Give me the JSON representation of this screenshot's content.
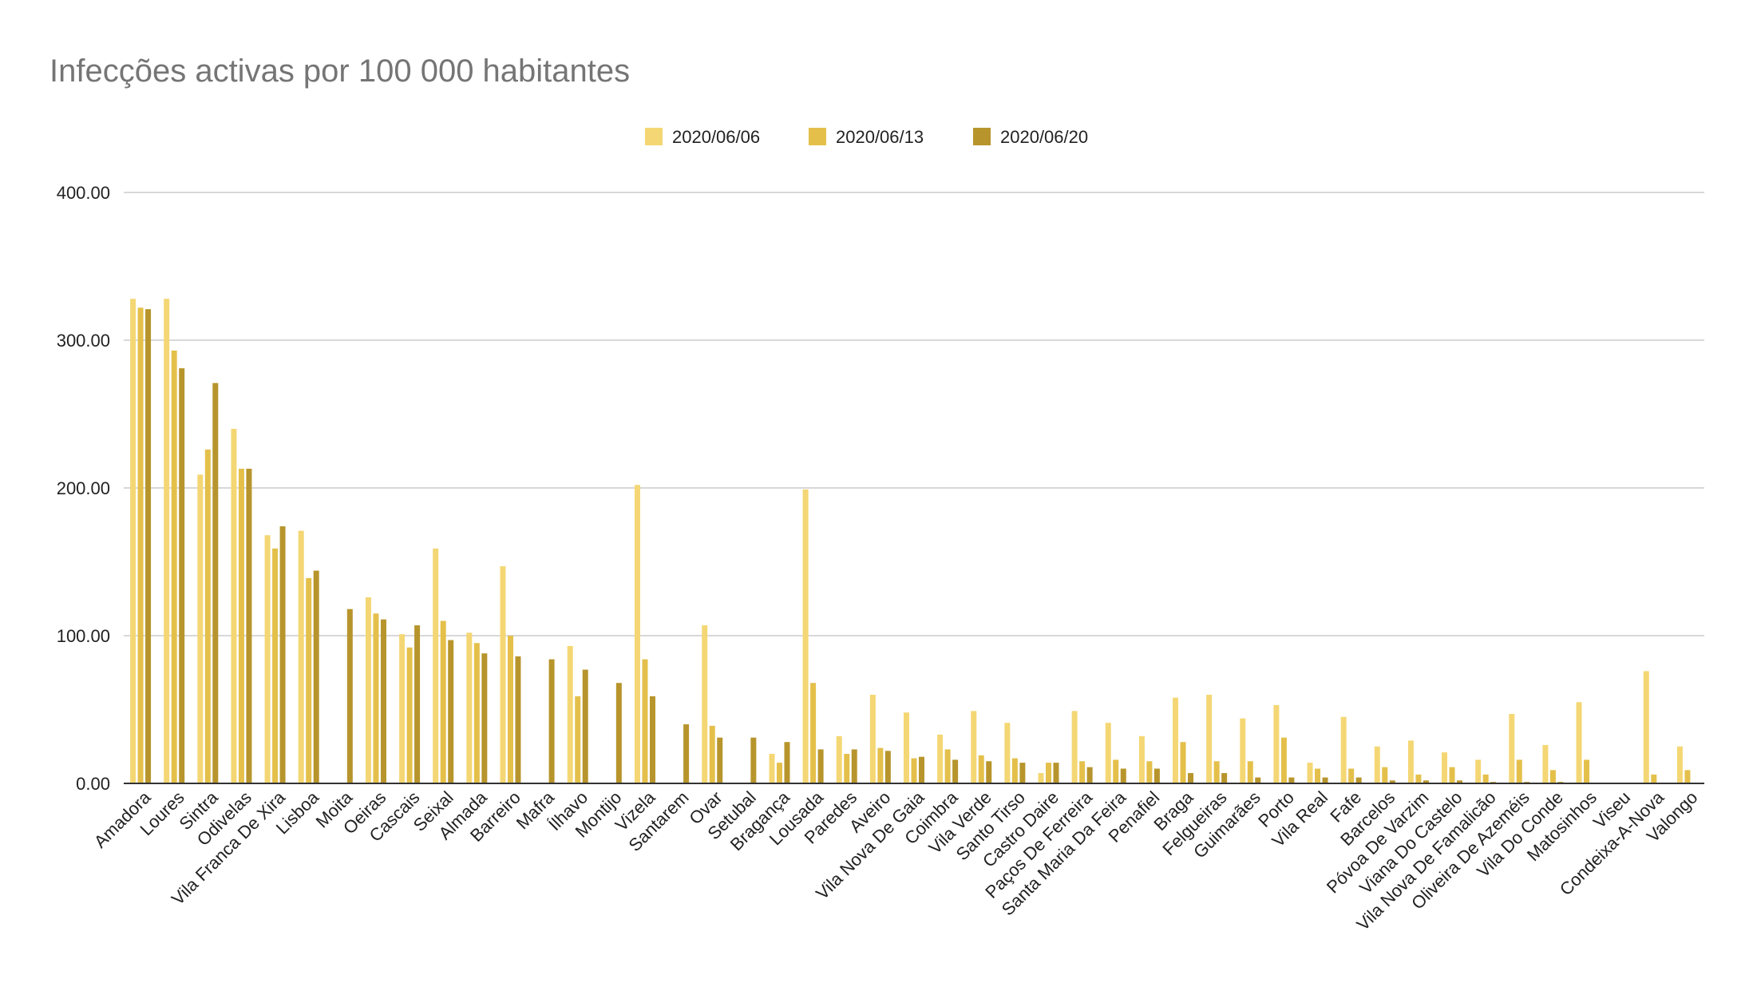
{
  "chart_data": {
    "type": "bar",
    "title": "Infecções activas por 100 000 habitantes",
    "xlabel": "",
    "ylabel": "",
    "ylim": [
      0,
      400
    ],
    "yticks": [
      0,
      100,
      200,
      300,
      400
    ],
    "ytick_labels": [
      "0.00",
      "100.00",
      "200.00",
      "300.00",
      "400.00"
    ],
    "grid": true,
    "legend_position": "top-center",
    "categories": [
      "Amadora",
      "Loures",
      "Sintra",
      "Odivelas",
      "Vila Franca De Xira",
      "Lisboa",
      "Moita",
      "Oeiras",
      "Cascais",
      "Seixal",
      "Almada",
      "Barreiro",
      "Mafra",
      "Ílhavo",
      "Montijo",
      "Vizela",
      "Santarem",
      "Ovar",
      "Setubal",
      "Bragança",
      "Lousada",
      "Paredes",
      "Aveiro",
      "Vila Nova De Gaia",
      "Coimbra",
      "Vila Verde",
      "Santo Tirso",
      "Castro Daire",
      "Paços De Ferreira",
      "Santa Maria Da Feira",
      "Penafiel",
      "Braga",
      "Felgueiras",
      "Guimarães",
      "Porto",
      "Vila Real",
      "Fafe",
      "Barcelos",
      "Póvoa De Varzim",
      "Viana Do Castelo",
      "Vila Nova De Famalicão",
      "Oliveira De Azeméis",
      "Vila Do Conde",
      "Matosinhos",
      "Viseu",
      "Condeixa-A-Nova",
      "Valongo"
    ],
    "series": [
      {
        "name": "2020/06/06",
        "color": "#f4d774",
        "values": [
          328,
          328,
          209,
          240,
          168,
          171,
          0,
          126,
          101,
          159,
          102,
          147,
          0,
          93,
          0,
          202,
          0,
          107,
          0,
          20,
          199,
          32,
          60,
          48,
          33,
          49,
          41,
          7,
          49,
          41,
          32,
          58,
          60,
          44,
          53,
          14,
          45,
          25,
          29,
          21,
          16,
          47,
          26,
          55,
          0,
          76,
          25
        ]
      },
      {
        "name": "2020/06/13",
        "color": "#e4c04b",
        "values": [
          322,
          293,
          226,
          213,
          159,
          139,
          0,
          115,
          92,
          110,
          95,
          100,
          0,
          59,
          0,
          84,
          0,
          39,
          0,
          14,
          68,
          20,
          24,
          17,
          23,
          19,
          17,
          14,
          15,
          16,
          15,
          28,
          15,
          15,
          31,
          10,
          10,
          11,
          6,
          11,
          6,
          16,
          9,
          16,
          0,
          6,
          9
        ]
      },
      {
        "name": "2020/06/20",
        "color": "#b7952c",
        "values": [
          321,
          281,
          271,
          213,
          174,
          144,
          118,
          111,
          107,
          97,
          88,
          86,
          84,
          77,
          68,
          59,
          40,
          31,
          31,
          28,
          23,
          23,
          22,
          18,
          16,
          15,
          14,
          14,
          11,
          10,
          10,
          7,
          7,
          4,
          4,
          4,
          4,
          2,
          2,
          2,
          1,
          1,
          1,
          0,
          0,
          0,
          0
        ]
      }
    ]
  }
}
